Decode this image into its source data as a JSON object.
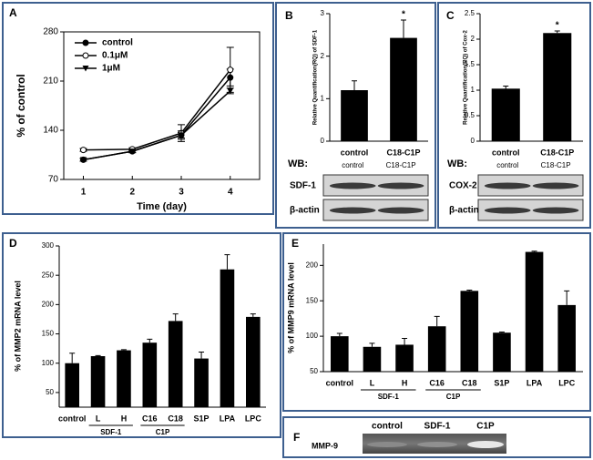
{
  "chart_data": [
    {
      "type": "line",
      "panel": "A",
      "x_label": "Time (day)",
      "y_label": "% of control",
      "x": [
        1,
        2,
        3,
        4
      ],
      "xlim": [
        0.6,
        4.6
      ],
      "xticks": [
        1,
        2,
        3,
        4
      ],
      "ylim": [
        70,
        280
      ],
      "yticks": [
        70,
        140,
        210,
        280
      ],
      "legend": "upper-left",
      "series": [
        {
          "name": "control",
          "color": "#000000",
          "marker": "circle",
          "values": [
            98,
            110,
            133,
            215
          ],
          "errors": [
            2,
            2,
            4,
            12
          ]
        },
        {
          "name": "0.1μM",
          "color": "#000000",
          "marker": "open-circle",
          "values": [
            112,
            113,
            136,
            226
          ],
          "errors": [
            2,
            2,
            12,
            32
          ]
        },
        {
          "name": "1μM",
          "color": "#000000",
          "marker": "triangle-down",
          "values": [
            98,
            110,
            133,
            196
          ],
          "errors": [
            2,
            2,
            6,
            4
          ]
        }
      ]
    },
    {
      "type": "bar",
      "panel": "B",
      "y_label": "Relative Quantification(RQ) of SDF-1",
      "categories": [
        "control",
        "C18-C1P"
      ],
      "values": [
        1.2,
        2.43
      ],
      "errors": [
        0.22,
        0.42
      ],
      "color": "#000000",
      "ylim": [
        0,
        3
      ],
      "yticks": [
        0,
        1,
        2,
        3
      ],
      "annotation": {
        "text": "*",
        "category": "C18-C1P"
      },
      "blot": {
        "label": "WB:",
        "lanes": [
          "control",
          "C18-C1P"
        ],
        "rows": [
          "SDF-1",
          "β-actin"
        ]
      }
    },
    {
      "type": "bar",
      "panel": "C",
      "y_label": "Relative Quantification(RQ) of Cox-2",
      "categories": [
        "control",
        "C18-C1P"
      ],
      "values": [
        1.03,
        2.12
      ],
      "errors": [
        0.05,
        0.04
      ],
      "color": "#000000",
      "ylim": [
        0,
        2.5
      ],
      "yticks": [
        0,
        0.5,
        1,
        1.5,
        2,
        2.5
      ],
      "annotation": {
        "text": "*",
        "category": "C18-C1P"
      },
      "blot": {
        "label": "WB:",
        "lanes": [
          "control",
          "C18-C1P"
        ],
        "rows": [
          "COX-2",
          "β-actin"
        ]
      }
    },
    {
      "type": "bar",
      "panel": "D",
      "y_label": "% of MMP2 mRNA level",
      "categories": [
        "control",
        "L",
        "H",
        "C16",
        "C18",
        "S1P",
        "LPA",
        "LPC"
      ],
      "values": [
        100,
        112,
        122,
        135,
        172,
        108,
        260,
        179
      ],
      "errors": [
        17,
        1,
        1,
        6,
        12,
        11,
        25,
        5
      ],
      "color": "#000000",
      "ylim": [
        25,
        300
      ],
      "yticks": [
        50,
        100,
        150,
        200,
        250,
        300
      ],
      "groups": [
        {
          "label": "SDF-1",
          "from": "L",
          "to": "H"
        },
        {
          "label": "C1P",
          "from": "C16",
          "to": "C18"
        }
      ]
    },
    {
      "type": "bar",
      "panel": "E",
      "y_label": "% of MMP9 mRNA level",
      "categories": [
        "control",
        "L",
        "H",
        "C16",
        "C18",
        "S1P",
        "LPA",
        "LPC"
      ],
      "values": [
        100,
        85,
        88,
        114,
        164,
        105,
        219,
        144
      ],
      "errors": [
        4,
        5,
        9,
        14,
        1,
        1,
        1,
        20
      ],
      "color": "#000000",
      "ylim": [
        50,
        230
      ],
      "yticks": [
        50,
        100,
        150,
        200
      ],
      "groups": [
        {
          "label": "SDF-1",
          "from": "L",
          "to": "H"
        },
        {
          "label": "C1P",
          "from": "C16",
          "to": "C18"
        }
      ]
    }
  ],
  "gel": {
    "panel": "F",
    "lanes": [
      "control",
      "SDF-1",
      "C1P"
    ],
    "row": "MMP-9"
  }
}
